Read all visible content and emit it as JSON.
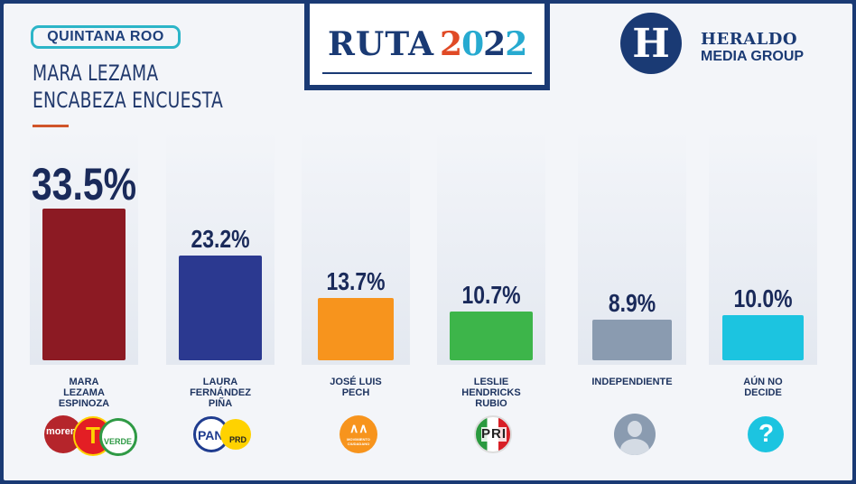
{
  "header": {
    "state": "QUINTANA ROO",
    "headline_lines": [
      "MARA LEZAMA",
      "ENCABEZA ENCUESTA"
    ],
    "brand_ruta": "RUTA",
    "brand_year": [
      "2",
      "0",
      "2",
      "2"
    ],
    "publisher_initial": "H",
    "publisher_line1": "HERALDO",
    "publisher_line2": "MEDIA GROUP"
  },
  "chart_data": {
    "type": "bar",
    "categories": [
      "MARA\nLEZAMA\nESPINOZA",
      "LAURA\nFERNÁNDEZ\nPIÑA",
      "JOSÉ LUIS\nPECH",
      "LESLIE\nHENDRICKS\nRUBIO",
      "INDEPENDIENTE",
      "AÚN NO\nDECIDE"
    ],
    "values": [
      33.5,
      23.2,
      13.7,
      10.7,
      8.9,
      10.0
    ],
    "value_labels": [
      "33.5%",
      "23.2%",
      "13.7%",
      "10.7%",
      "8.9%",
      "10.0%"
    ],
    "colors": [
      "#8c1a23",
      "#2b3990",
      "#f7941d",
      "#3db54a",
      "#8a9bb0",
      "#1cc4e0"
    ],
    "ylim": [
      0,
      33.5
    ]
  },
  "icons": [
    {
      "name": "morena-pt-verde-logo",
      "texts": [
        "morena",
        "T",
        "VERDE"
      ],
      "colors": [
        "#b5252b",
        "#e31e24",
        "#2f9a45"
      ]
    },
    {
      "name": "pan-prd-logo",
      "texts": [
        "PAN",
        "PRD"
      ],
      "colors": [
        "#1f3c8f",
        "#ffd200"
      ]
    },
    {
      "name": "movimiento-ciudadano-logo",
      "texts": [
        "MOVIMIENTO CIUDADANO"
      ],
      "colors": [
        "#f7941d"
      ]
    },
    {
      "name": "pri-logo",
      "texts": [
        "PRI"
      ],
      "colors": [
        "#2a9a3f",
        "#ffffff",
        "#d81f26"
      ]
    },
    {
      "name": "user-silhouette-icon",
      "texts": [],
      "colors": [
        "#8a9bb0"
      ]
    },
    {
      "name": "question-mark-icon",
      "texts": [
        "?"
      ],
      "colors": [
        "#1cc4e0"
      ]
    }
  ]
}
